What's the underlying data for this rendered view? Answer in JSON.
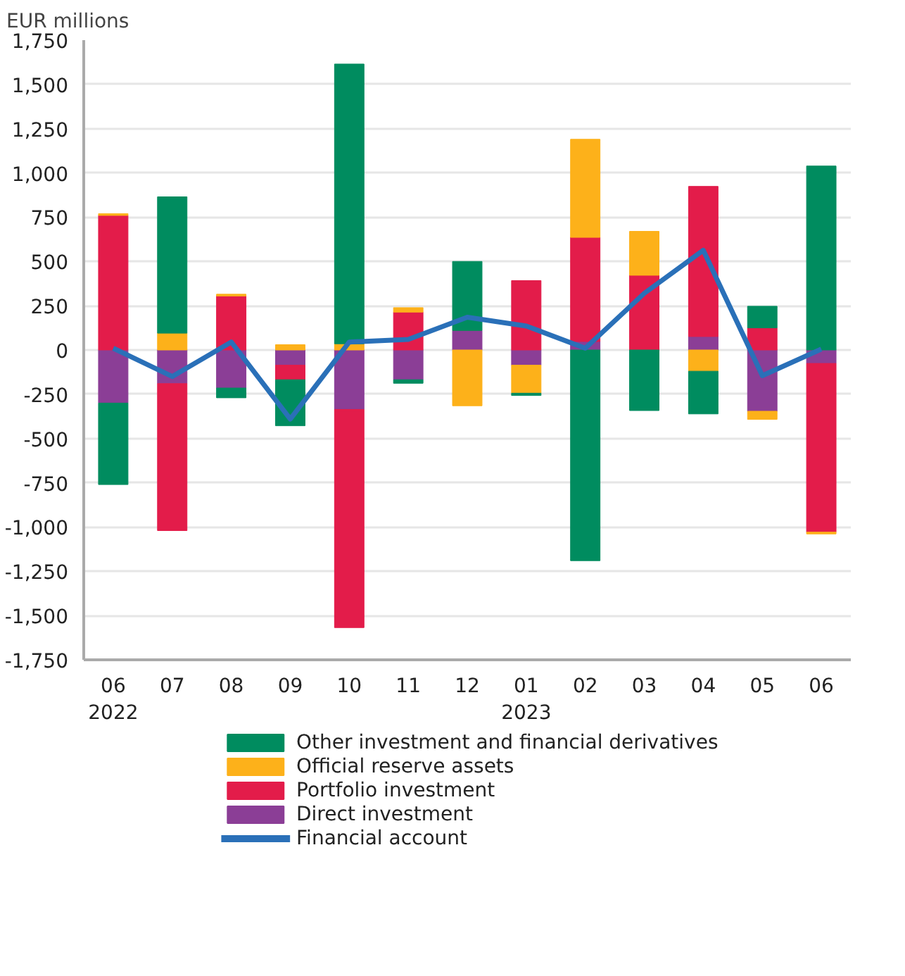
{
  "chart_data": {
    "type": "bar",
    "stacked": true,
    "ylabel": "EUR millions",
    "categories": [
      "06\n2022",
      "07",
      "08",
      "09",
      "10",
      "11",
      "12",
      "01\n2023",
      "02",
      "03",
      "04",
      "05",
      "06"
    ],
    "series": [
      {
        "name": "Direct investment",
        "color": "#8b3e96",
        "values": [
          -300,
          -190,
          -215,
          -86,
          -336,
          -168,
          110,
          -86,
          48,
          null,
          76,
          -346,
          -76
        ]
      },
      {
        "name": "Portfolio investment",
        "color": "#e31c4a",
        "values": [
          760,
          -830,
          305,
          -82,
          -1232,
          214,
          0,
          392,
          588,
          422,
          848,
          125,
          -953
        ]
      },
      {
        "name": "Official reserve assets",
        "color": "#fdb11a",
        "values": [
          10,
          95,
          10,
          30,
          35,
          25,
          -315,
          -158,
          554,
          248,
          -120,
          -46,
          -10
        ]
      },
      {
        "name": "Other investment and financial derivatives",
        "color": "#008c5f",
        "values": [
          -460,
          770,
          -55,
          -260,
          1580,
          -20,
          390,
          -13,
          -1190,
          -342,
          -241,
          122,
          1039
        ]
      },
      {
        "name": "Financial account",
        "type": "line",
        "color": "#2a70b8",
        "values": [
          10,
          -150,
          45,
          -390,
          45,
          60,
          185,
          135,
          10,
          320,
          563,
          -145,
          5
        ]
      }
    ],
    "ylim": [
      -1750,
      1750
    ],
    "yticks": [
      {
        "value": -1750,
        "label": "-1,750"
      },
      {
        "value": -1500,
        "label": "-1,500"
      },
      {
        "value": -1250,
        "label": "-1,250"
      },
      {
        "value": -1000,
        "label": "-1,000"
      },
      -750,
      -500,
      -250,
      0,
      250,
      500,
      750,
      {
        "value": 1000,
        "label": "1,000"
      },
      {
        "value": 1250,
        "label": "1,250"
      },
      {
        "value": 1500,
        "label": "1,500"
      },
      {
        "value": 1750,
        "label": "1,750"
      }
    ],
    "grid": "y",
    "legend": "bottom"
  }
}
